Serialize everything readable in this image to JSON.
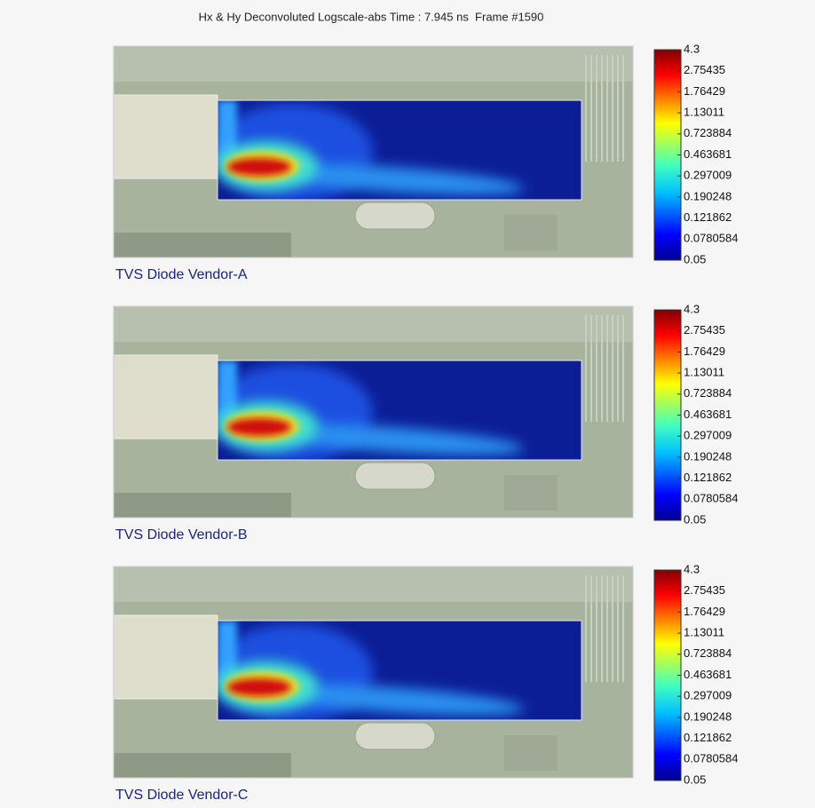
{
  "title": "Hx & Hy Deconvoluted Logscale-abs Time : 7.945 ns  Frame #1590",
  "colorbar_ticks": [
    4.3,
    2.75435,
    1.76429,
    1.13011,
    0.723884,
    0.463681,
    0.297009,
    0.190248,
    0.121862,
    0.0780584,
    0.05
  ],
  "panels": [
    {
      "label": "TVS Diode Vendor-A"
    },
    {
      "label": "TVS Diode Vendor-B"
    },
    {
      "label": "TVS Diode Vendor-C"
    }
  ]
}
